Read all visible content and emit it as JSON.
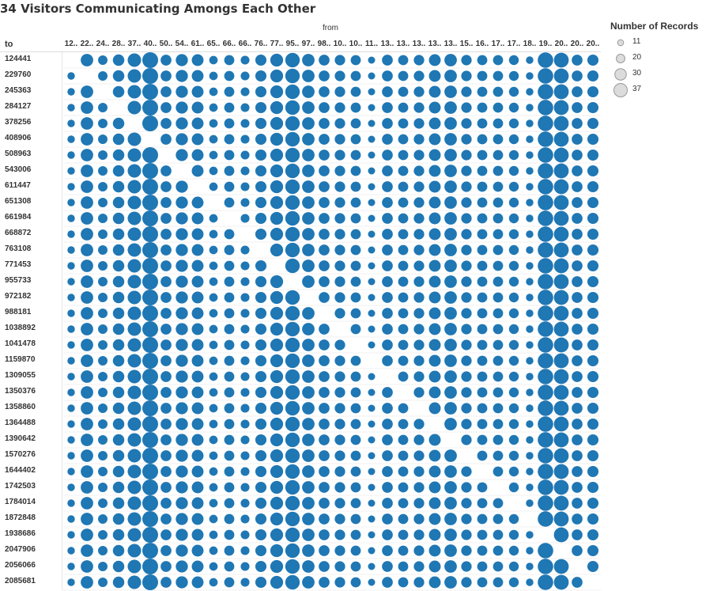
{
  "title": "34 Visitors Communicating Amongs Each Other",
  "chart_data": {
    "type": "scatter",
    "x_axis_title": "from",
    "y_axis_title": "to",
    "columns": [
      "12..",
      "22..",
      "24..",
      "28..",
      "37..",
      "40..",
      "50..",
      "54..",
      "61..",
      "65..",
      "66..",
      "66..",
      "76..",
      "77..",
      "95..",
      "97..",
      "98..",
      "10..",
      "10..",
      "11..",
      "13..",
      "13..",
      "13..",
      "13..",
      "13..",
      "15..",
      "16..",
      "17..",
      "17..",
      "18..",
      "19..",
      "20..",
      "20..",
      "20.."
    ],
    "rows": [
      "124441",
      "229760",
      "245363",
      "284127",
      "378256",
      "408906",
      "508963",
      "543006",
      "611447",
      "651308",
      "661984",
      "668872",
      "763108",
      "771453",
      "955733",
      "972182",
      "988181",
      "1038892",
      "1041478",
      "1159870",
      "1309055",
      "1350376",
      "1358860",
      "1364488",
      "1390642",
      "1570276",
      "1644402",
      "1742503",
      "1784014",
      "1872848",
      "1938686",
      "2047906",
      "2056066",
      "2085681"
    ],
    "column_typical_records": [
      12,
      27,
      18,
      24,
      30,
      37,
      22,
      26,
      25,
      15,
      20,
      16,
      23,
      28,
      33,
      27,
      22,
      21,
      20,
      11,
      22,
      20,
      21,
      25,
      27,
      21,
      20,
      20,
      19,
      12,
      36,
      34,
      22,
      23
    ],
    "diagonal": "empty",
    "mark_color": "#1f77b4"
  },
  "legend": {
    "title": "Number of Records",
    "items": [
      "11",
      "20",
      "30",
      "37"
    ]
  }
}
